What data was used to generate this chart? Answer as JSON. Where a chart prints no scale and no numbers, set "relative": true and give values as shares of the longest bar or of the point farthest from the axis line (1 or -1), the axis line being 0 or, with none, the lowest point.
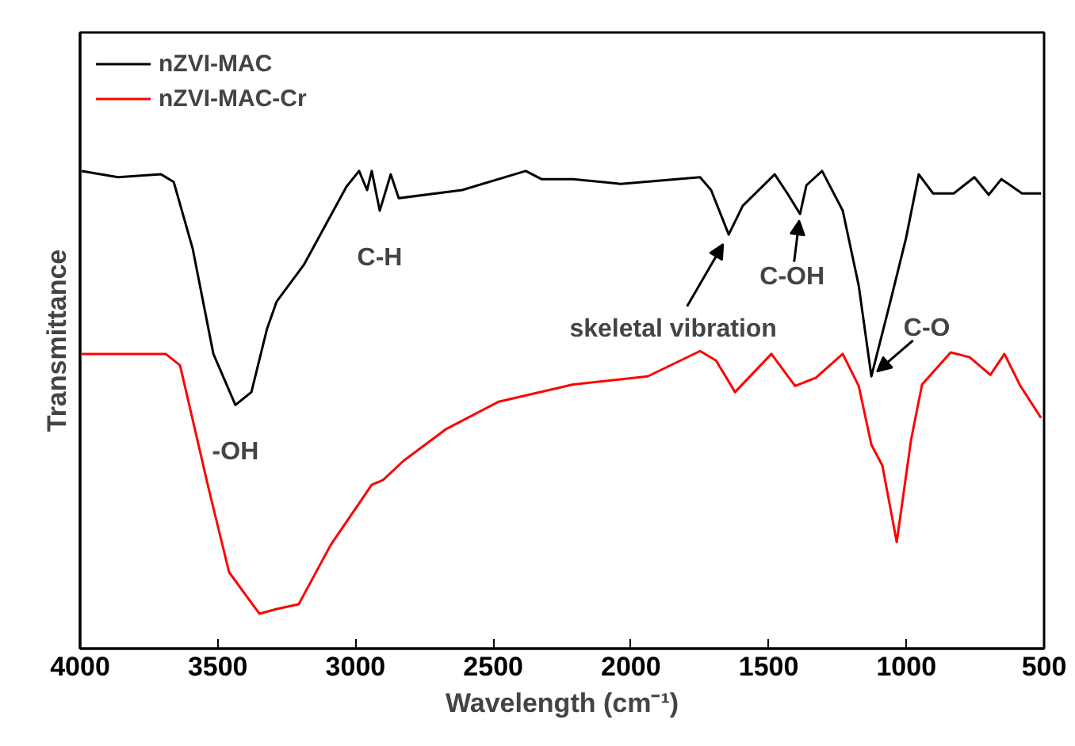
{
  "chart_data": {
    "type": "line",
    "relative": true,
    "xlabel": "Wavelength (cm⁻¹)",
    "ylabel": "Transmittance",
    "xlim": [
      4000,
      500
    ],
    "xticks": [
      4000,
      3500,
      3000,
      2500,
      2000,
      1500,
      1000,
      500
    ],
    "legend": "top left",
    "grid": false,
    "line_style": "solid",
    "marker": "none",
    "series": [
      {
        "name": "nZVI-MAC",
        "color": "#000000",
        "x": [
          3994,
          3862,
          3706,
          3660,
          3591,
          3516,
          3436,
          3378,
          3321,
          3286,
          3188,
          3033,
          2987,
          2958,
          2941,
          2912,
          2872,
          2843,
          2613,
          2382,
          2325,
          2210,
          2037,
          1749,
          1709,
          1645,
          1594,
          1478,
          1432,
          1386,
          1363,
          1306,
          1231,
          1173,
          1127,
          1058,
          1001,
          955,
          903,
          828,
          753,
          701,
          655,
          580,
          511
        ],
        "values": [
          1.0,
          0.987,
          0.993,
          0.977,
          0.837,
          0.617,
          0.51,
          0.537,
          0.67,
          0.727,
          0.803,
          0.967,
          1.0,
          0.96,
          1.0,
          0.917,
          0.993,
          0.943,
          0.96,
          1.0,
          0.983,
          0.983,
          0.973,
          0.987,
          0.96,
          0.867,
          0.927,
          0.993,
          0.953,
          0.91,
          0.97,
          1.0,
          0.917,
          0.76,
          0.57,
          0.727,
          0.86,
          0.993,
          0.953,
          0.953,
          0.987,
          0.95,
          0.983,
          0.953,
          0.953
        ]
      },
      {
        "name": "nZVI-MAC-Cr",
        "color": "#ff0000",
        "x": [
          3994,
          3689,
          3637,
          3534,
          3459,
          3349,
          3286,
          3206,
          3090,
          2941,
          2900,
          2826,
          2670,
          2480,
          2210,
          1939,
          1749,
          1691,
          1622,
          1490,
          1404,
          1329,
          1231,
          1173,
          1127,
          1087,
          1035,
          983,
          943,
          839,
          770,
          695,
          644,
          586,
          511
        ],
        "values": [
          0.617,
          0.617,
          0.593,
          0.337,
          0.16,
          0.073,
          0.083,
          0.093,
          0.217,
          0.343,
          0.353,
          0.393,
          0.46,
          0.517,
          0.553,
          0.57,
          0.623,
          0.603,
          0.537,
          0.617,
          0.55,
          0.567,
          0.617,
          0.55,
          0.427,
          0.383,
          0.223,
          0.437,
          0.553,
          0.62,
          0.61,
          0.573,
          0.617,
          0.55,
          0.483
        ]
      }
    ],
    "annotations": [
      {
        "text": "-OH",
        "x": 3436,
        "y": 0.51
      },
      {
        "text": "C-H",
        "x": 2912,
        "y": 0.917
      },
      {
        "text": "skeletal vibration",
        "x": 1645,
        "y": 0.867
      },
      {
        "text": "C-OH",
        "x": 1386,
        "y": 0.91
      },
      {
        "text": "C-O",
        "x": 1127,
        "y": 0.57
      }
    ]
  }
}
